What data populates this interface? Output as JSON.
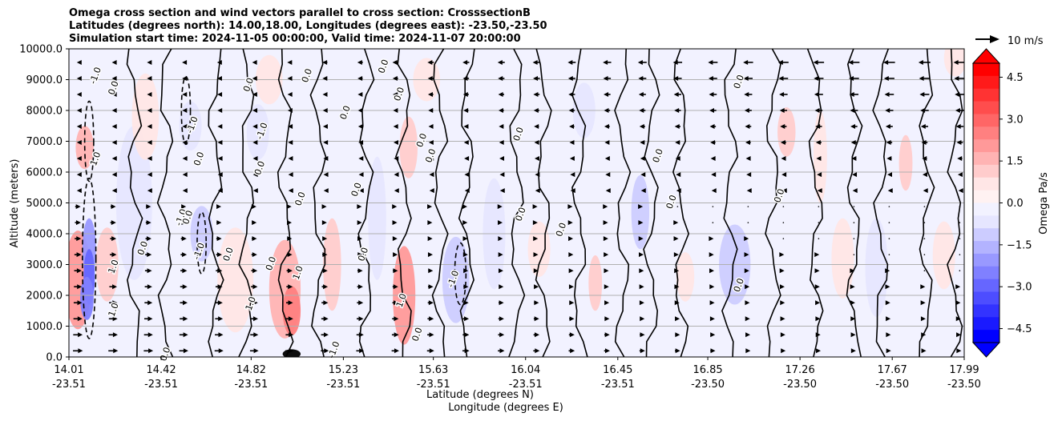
{
  "chart_data": {
    "type": "heatmap",
    "title_lines": [
      "Omega cross section and wind vectors parallel to cross section: CrosssectionB",
      "Latitudes (degrees north): 14.00,18.00, Longitudes (degrees east): -23.50,-23.50",
      "Simulation start time: 2024-11-05 00:00:00, Valid time: 2024-11-07 20:00:00"
    ],
    "xlabel_lines": [
      "Latitude (degrees N)",
      "Longitude (degrees E)"
    ],
    "ylabel": "Altitude (meters)",
    "x_ticks": [
      {
        "lat": "14.01",
        "lon": "-23.51"
      },
      {
        "lat": "14.42",
        "lon": "-23.51"
      },
      {
        "lat": "14.82",
        "lon": "-23.51"
      },
      {
        "lat": "15.23",
        "lon": "-23.51"
      },
      {
        "lat": "15.63",
        "lon": "-23.51"
      },
      {
        "lat": "16.04",
        "lon": "-23.51"
      },
      {
        "lat": "16.45",
        "lon": "-23.51"
      },
      {
        "lat": "16.85",
        "lon": "-23.50"
      },
      {
        "lat": "17.26",
        "lon": "-23.50"
      },
      {
        "lat": "17.67",
        "lon": "-23.50"
      },
      {
        "lat": "17.99",
        "lon": "-23.50"
      }
    ],
    "xlim": [
      14.01,
      17.99
    ],
    "y_ticks": [
      "0.0",
      "1000.0",
      "2000.0",
      "3000.0",
      "4000.0",
      "5000.0",
      "6000.0",
      "7000.0",
      "8000.0",
      "9000.0",
      "10000.0"
    ],
    "ylim": [
      0,
      10000
    ],
    "grid": "horizontal",
    "colorbar": {
      "label": "Omega Pa/s",
      "ticks": [
        "4.5",
        "3.0",
        "1.5",
        "0.0",
        "−1.5",
        "−3.0",
        "−4.5"
      ],
      "range": [
        -5,
        5
      ],
      "colors_top_to_bottom": [
        "#ff0000",
        "#ff1a1a",
        "#ff3333",
        "#ff4d4d",
        "#ff6666",
        "#ff8080",
        "#ff9999",
        "#ffb3b3",
        "#ffcccc",
        "#ffe6e6",
        "#fff2f2",
        "#f2f2ff",
        "#e6e6ff",
        "#ccccff",
        "#b3b3ff",
        "#9999ff",
        "#8080ff",
        "#6666ff",
        "#4d4dff",
        "#3333ff",
        "#1a1aff",
        "#0000ff"
      ]
    },
    "vector_key": {
      "label": "10 m/s"
    },
    "contour_levels_labeled": [
      "-1.0",
      "0.0",
      "1.0"
    ],
    "contour_labels": [
      {
        "text": "0.0",
        "lat": 14.45,
        "alt": 60
      },
      {
        "text": "0.0",
        "lat": 14.22,
        "alt": 8700
      },
      {
        "text": "-1.0",
        "lat": 14.14,
        "alt": 9100
      },
      {
        "text": "1.0",
        "lat": 14.14,
        "alt": 6400
      },
      {
        "text": "1.0",
        "lat": 14.22,
        "alt": 2900
      },
      {
        "text": "1.0",
        "lat": 14.22,
        "alt": 1500
      },
      {
        "text": "0.0",
        "lat": 14.35,
        "alt": 3500
      },
      {
        "text": "-1.0",
        "lat": 14.57,
        "alt": 7500
      },
      {
        "text": "0.0",
        "lat": 14.6,
        "alt": 6400
      },
      {
        "text": "-1.0",
        "lat": 14.52,
        "alt": 4500
      },
      {
        "text": "0.0",
        "lat": 14.55,
        "alt": 4500
      },
      {
        "text": "-1.0",
        "lat": 14.6,
        "alt": 3400
      },
      {
        "text": "0.0",
        "lat": 14.73,
        "alt": 3300
      },
      {
        "text": "1.0",
        "lat": 14.83,
        "alt": 1700
      },
      {
        "text": "-1.0",
        "lat": 14.88,
        "alt": 7300
      },
      {
        "text": "0.0",
        "lat": 14.82,
        "alt": 8800
      },
      {
        "text": "0.0",
        "lat": 14.87,
        "alt": 6100
      },
      {
        "text": "0.0",
        "lat": 14.92,
        "alt": 3000
      },
      {
        "text": "1.0",
        "lat": 15.04,
        "alt": 2700
      },
      {
        "text": "0.0",
        "lat": 15.05,
        "alt": 5100
      },
      {
        "text": "0.0",
        "lat": 15.08,
        "alt": 9100
      },
      {
        "text": "-1.0",
        "lat": 15.2,
        "alt": 200
      },
      {
        "text": "0.0",
        "lat": 15.25,
        "alt": 7900
      },
      {
        "text": "0.0",
        "lat": 15.3,
        "alt": 5400
      },
      {
        "text": "0.0",
        "lat": 15.33,
        "alt": 3300
      },
      {
        "text": "0.0",
        "lat": 15.42,
        "alt": 9400
      },
      {
        "text": "0.0",
        "lat": 15.49,
        "alt": 8500
      },
      {
        "text": "1.0",
        "lat": 15.5,
        "alt": 1800
      },
      {
        "text": "0.0",
        "lat": 15.57,
        "alt": 700
      },
      {
        "text": "0.0",
        "lat": 15.59,
        "alt": 7000
      },
      {
        "text": "0.0",
        "lat": 15.63,
        "alt": 6500
      },
      {
        "text": "-1.0",
        "lat": 15.73,
        "alt": 2500
      },
      {
        "text": "0.0",
        "lat": 16.02,
        "alt": 7200
      },
      {
        "text": "0.0",
        "lat": 16.03,
        "alt": 4600
      },
      {
        "text": "0.0",
        "lat": 16.21,
        "alt": 4100
      },
      {
        "text": "0.0",
        "lat": 16.64,
        "alt": 6500
      },
      {
        "text": "0.0",
        "lat": 16.7,
        "alt": 5000
      },
      {
        "text": "0.0",
        "lat": 17.0,
        "alt": 8900
      },
      {
        "text": "0.0",
        "lat": 17.0,
        "alt": 2300
      },
      {
        "text": "0.0",
        "lat": 17.18,
        "alt": 5200
      }
    ]
  }
}
